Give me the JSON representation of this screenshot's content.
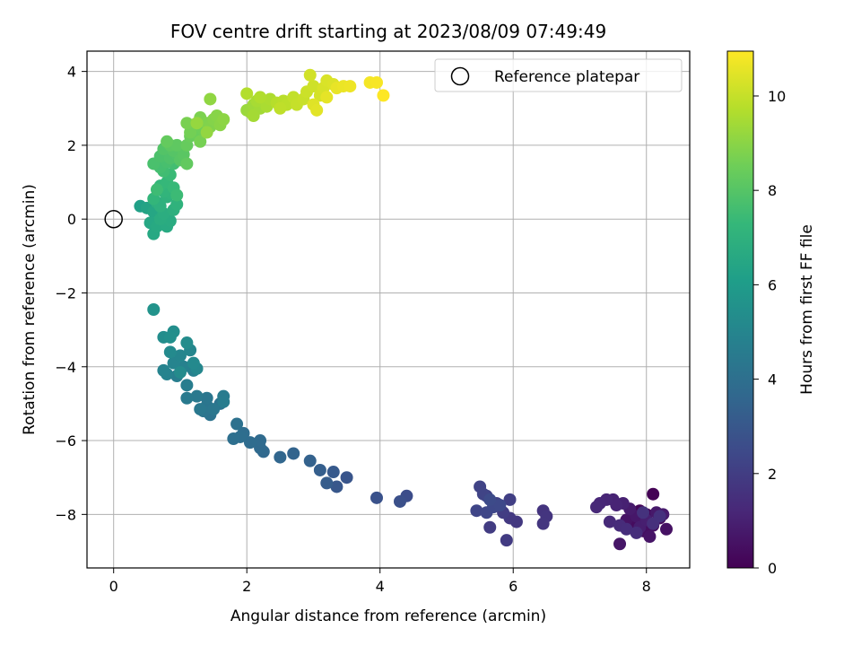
{
  "chart_data": {
    "type": "scatter",
    "title": "FOV centre drift starting at 2023/08/09 07:49:49",
    "xlabel": "Angular distance from reference (arcmin)",
    "ylabel": "Rotation from reference (arcmin)",
    "xlim": [
      -0.4,
      8.65
    ],
    "ylim": [
      -9.45,
      4.55
    ],
    "xticks": [
      0,
      2,
      4,
      6,
      8
    ],
    "yticks": [
      -8,
      -6,
      -4,
      -2,
      0,
      2,
      4
    ],
    "grid": true,
    "legend": {
      "position": "upper right",
      "entries": [
        "Reference platepar"
      ]
    },
    "reference_point": {
      "x": 0.0,
      "y": 0.0
    },
    "colorbar": {
      "label": "Hours from first FF file",
      "colormap": "viridis",
      "range": [
        0,
        10.95
      ],
      "ticks": [
        0,
        2,
        4,
        6,
        8,
        10
      ]
    },
    "points": [
      [
        8.1,
        -7.45,
        0.05
      ],
      [
        7.9,
        -7.9,
        0.15
      ],
      [
        8.0,
        -8.0,
        0.2
      ],
      [
        8.2,
        -8.1,
        0.3
      ],
      [
        7.8,
        -8.2,
        0.35
      ],
      [
        8.1,
        -8.3,
        0.4
      ],
      [
        7.95,
        -8.45,
        0.45
      ],
      [
        8.3,
        -8.4,
        0.5
      ],
      [
        7.7,
        -8.15,
        0.55
      ],
      [
        8.05,
        -8.6,
        0.6
      ],
      [
        7.6,
        -8.8,
        0.65
      ],
      [
        7.85,
        -8.05,
        0.7
      ],
      [
        8.15,
        -7.95,
        0.75
      ],
      [
        7.75,
        -7.85,
        0.8
      ],
      [
        8.25,
        -8.0,
        0.85
      ],
      [
        7.9,
        -8.35,
        0.9
      ],
      [
        8.0,
        -8.15,
        0.95
      ],
      [
        7.65,
        -7.7,
        1.0
      ],
      [
        7.5,
        -7.6,
        1.05
      ],
      [
        7.55,
        -7.75,
        1.1
      ],
      [
        7.4,
        -7.6,
        1.15
      ],
      [
        7.3,
        -7.7,
        1.2
      ],
      [
        7.25,
        -7.8,
        1.25
      ],
      [
        7.45,
        -8.2,
        1.3
      ],
      [
        7.6,
        -8.3,
        1.35
      ],
      [
        7.7,
        -8.4,
        1.4
      ],
      [
        7.85,
        -8.5,
        1.45
      ],
      [
        8.1,
        -8.25,
        1.5
      ],
      [
        8.2,
        -8.05,
        1.55
      ],
      [
        7.95,
        -7.95,
        1.6
      ],
      [
        6.45,
        -7.9,
        1.65
      ],
      [
        6.5,
        -8.05,
        1.7
      ],
      [
        6.45,
        -8.25,
        1.75
      ],
      [
        6.05,
        -8.2,
        1.8
      ],
      [
        5.95,
        -8.1,
        1.85
      ],
      [
        5.9,
        -8.7,
        1.9
      ],
      [
        5.65,
        -8.35,
        1.95
      ],
      [
        5.85,
        -7.95,
        2.0
      ],
      [
        5.95,
        -7.6,
        2.05
      ],
      [
        5.75,
        -7.7,
        2.1
      ],
      [
        5.6,
        -7.5,
        2.15
      ],
      [
        5.5,
        -7.25,
        2.2
      ],
      [
        5.55,
        -7.45,
        2.25
      ],
      [
        5.45,
        -7.9,
        2.3
      ],
      [
        5.6,
        -7.95,
        2.35
      ],
      [
        5.7,
        -7.8,
        2.4
      ],
      [
        5.8,
        -7.75,
        2.45
      ],
      [
        5.65,
        -7.6,
        2.5
      ],
      [
        4.4,
        -7.5,
        2.6
      ],
      [
        4.3,
        -7.65,
        2.7
      ],
      [
        3.95,
        -7.55,
        2.8
      ],
      [
        3.5,
        -7.0,
        2.9
      ],
      [
        3.35,
        -7.25,
        3.0
      ],
      [
        3.3,
        -6.85,
        3.1
      ],
      [
        3.2,
        -7.15,
        3.2
      ],
      [
        3.1,
        -6.8,
        3.3
      ],
      [
        2.95,
        -6.55,
        3.4
      ],
      [
        2.7,
        -6.35,
        3.5
      ],
      [
        2.5,
        -6.45,
        3.6
      ],
      [
        2.25,
        -6.3,
        3.7
      ],
      [
        2.2,
        -6.2,
        3.75
      ],
      [
        2.2,
        -6.0,
        3.8
      ],
      [
        2.05,
        -6.05,
        3.85
      ],
      [
        1.95,
        -5.8,
        3.9
      ],
      [
        1.9,
        -5.9,
        3.95
      ],
      [
        1.8,
        -5.95,
        4.0
      ],
      [
        1.85,
        -5.55,
        4.05
      ],
      [
        1.6,
        -5.0,
        4.1
      ],
      [
        1.45,
        -5.3,
        4.15
      ],
      [
        1.4,
        -5.05,
        4.2
      ],
      [
        1.35,
        -5.2,
        4.25
      ],
      [
        1.4,
        -4.85,
        4.3
      ],
      [
        1.5,
        -5.15,
        4.35
      ],
      [
        1.3,
        -5.15,
        4.4
      ],
      [
        1.25,
        -4.8,
        4.45
      ],
      [
        1.1,
        -4.85,
        4.5
      ],
      [
        1.65,
        -4.8,
        4.55
      ],
      [
        1.65,
        -4.95,
        4.6
      ],
      [
        1.1,
        -4.5,
        4.65
      ],
      [
        0.95,
        -4.25,
        4.7
      ],
      [
        1.2,
        -4.1,
        4.75
      ],
      [
        1.05,
        -4.0,
        4.8
      ],
      [
        0.8,
        -4.2,
        4.85
      ],
      [
        0.75,
        -4.1,
        4.9
      ],
      [
        0.9,
        -3.9,
        4.95
      ],
      [
        1.0,
        -3.7,
        5.0
      ],
      [
        1.15,
        -3.55,
        5.05
      ],
      [
        1.25,
        -4.05,
        5.1
      ],
      [
        1.2,
        -3.9,
        5.15
      ],
      [
        0.85,
        -3.6,
        5.2
      ],
      [
        1.0,
        -4.15,
        5.25
      ],
      [
        1.1,
        -3.35,
        5.3
      ],
      [
        0.75,
        -3.2,
        5.35
      ],
      [
        0.9,
        -3.05,
        5.4
      ],
      [
        0.85,
        -3.2,
        5.45
      ],
      [
        0.6,
        -2.45,
        5.6
      ],
      [
        0.4,
        0.35,
        6.2
      ],
      [
        0.5,
        0.3,
        6.35
      ],
      [
        0.6,
        0.2,
        6.45
      ],
      [
        0.55,
        -0.1,
        6.5
      ],
      [
        0.6,
        -0.4,
        6.55
      ],
      [
        0.65,
        -0.2,
        6.6
      ],
      [
        0.8,
        -0.2,
        6.65
      ],
      [
        0.85,
        -0.05,
        6.7
      ],
      [
        0.7,
        0.0,
        6.75
      ],
      [
        0.75,
        0.15,
        6.8
      ],
      [
        0.65,
        0.45,
        6.85
      ],
      [
        0.9,
        0.25,
        6.9
      ],
      [
        0.7,
        0.35,
        6.95
      ],
      [
        0.8,
        0.6,
        7.0
      ],
      [
        0.95,
        0.4,
        7.05
      ],
      [
        0.85,
        0.7,
        7.1
      ],
      [
        0.75,
        0.75,
        7.15
      ],
      [
        0.6,
        0.55,
        7.2
      ],
      [
        0.7,
        0.9,
        7.25
      ],
      [
        0.8,
        1.0,
        7.3
      ],
      [
        0.9,
        0.85,
        7.35
      ],
      [
        0.85,
        1.2,
        7.4
      ],
      [
        0.95,
        0.65,
        7.45
      ],
      [
        0.65,
        0.8,
        7.5
      ],
      [
        0.75,
        1.3,
        7.55
      ],
      [
        0.9,
        1.5,
        7.6
      ],
      [
        0.7,
        1.4,
        7.65
      ],
      [
        0.8,
        1.55,
        7.7
      ],
      [
        0.6,
        1.5,
        7.75
      ],
      [
        0.7,
        1.7,
        7.8
      ],
      [
        0.85,
        1.65,
        7.85
      ],
      [
        0.95,
        1.75,
        7.9
      ],
      [
        0.75,
        1.9,
        7.95
      ],
      [
        0.9,
        1.85,
        8.0
      ],
      [
        1.0,
        1.6,
        8.05
      ],
      [
        1.05,
        1.75,
        8.1
      ],
      [
        0.85,
        2.0,
        8.15
      ],
      [
        0.95,
        2.0,
        8.2
      ],
      [
        1.1,
        1.5,
        8.25
      ],
      [
        0.8,
        2.1,
        8.3
      ],
      [
        1.1,
        2.0,
        8.35
      ],
      [
        1.15,
        2.25,
        8.4
      ],
      [
        1.25,
        2.3,
        8.45
      ],
      [
        1.35,
        2.4,
        8.5
      ],
      [
        1.2,
        2.55,
        8.55
      ],
      [
        1.15,
        2.35,
        8.6
      ],
      [
        1.3,
        2.1,
        8.65
      ],
      [
        1.1,
        2.6,
        8.7
      ],
      [
        1.3,
        2.75,
        8.75
      ],
      [
        1.4,
        2.6,
        8.8
      ],
      [
        1.45,
        2.5,
        8.85
      ],
      [
        1.5,
        2.7,
        8.9
      ],
      [
        1.55,
        2.8,
        8.95
      ],
      [
        1.6,
        2.55,
        9.0
      ],
      [
        1.65,
        2.7,
        9.05
      ],
      [
        1.45,
        3.25,
        9.1
      ],
      [
        1.4,
        2.35,
        9.15
      ],
      [
        1.25,
        2.6,
        9.2
      ],
      [
        2.0,
        2.95,
        9.25
      ],
      [
        2.05,
        2.9,
        9.3
      ],
      [
        2.1,
        3.1,
        9.35
      ],
      [
        2.2,
        3.0,
        9.4
      ],
      [
        2.1,
        2.8,
        9.45
      ],
      [
        2.15,
        3.2,
        9.5
      ],
      [
        2.3,
        3.05,
        9.55
      ],
      [
        2.35,
        3.25,
        9.6
      ],
      [
        2.2,
        3.3,
        9.65
      ],
      [
        2.0,
        3.4,
        9.7
      ],
      [
        2.45,
        3.15,
        9.75
      ],
      [
        2.55,
        3.2,
        9.8
      ],
      [
        2.6,
        3.1,
        9.85
      ],
      [
        2.5,
        3.0,
        9.9
      ],
      [
        2.7,
        3.3,
        9.95
      ],
      [
        2.75,
        3.1,
        10.0
      ],
      [
        2.85,
        3.25,
        10.05
      ],
      [
        2.9,
        3.45,
        10.1
      ],
      [
        3.0,
        3.6,
        10.15
      ],
      [
        2.95,
        3.9,
        10.2
      ],
      [
        3.1,
        3.35,
        10.25
      ],
      [
        3.15,
        3.55,
        10.3
      ],
      [
        3.2,
        3.75,
        10.35
      ],
      [
        3.3,
        3.65,
        10.4
      ],
      [
        3.0,
        3.1,
        10.45
      ],
      [
        3.05,
        2.95,
        10.5
      ],
      [
        3.2,
        3.3,
        10.55
      ],
      [
        3.35,
        3.55,
        10.6
      ],
      [
        3.45,
        3.6,
        10.65
      ],
      [
        3.55,
        3.6,
        10.7
      ],
      [
        3.85,
        3.7,
        10.8
      ],
      [
        3.95,
        3.7,
        10.85
      ],
      [
        4.05,
        3.35,
        10.95
      ]
    ]
  }
}
